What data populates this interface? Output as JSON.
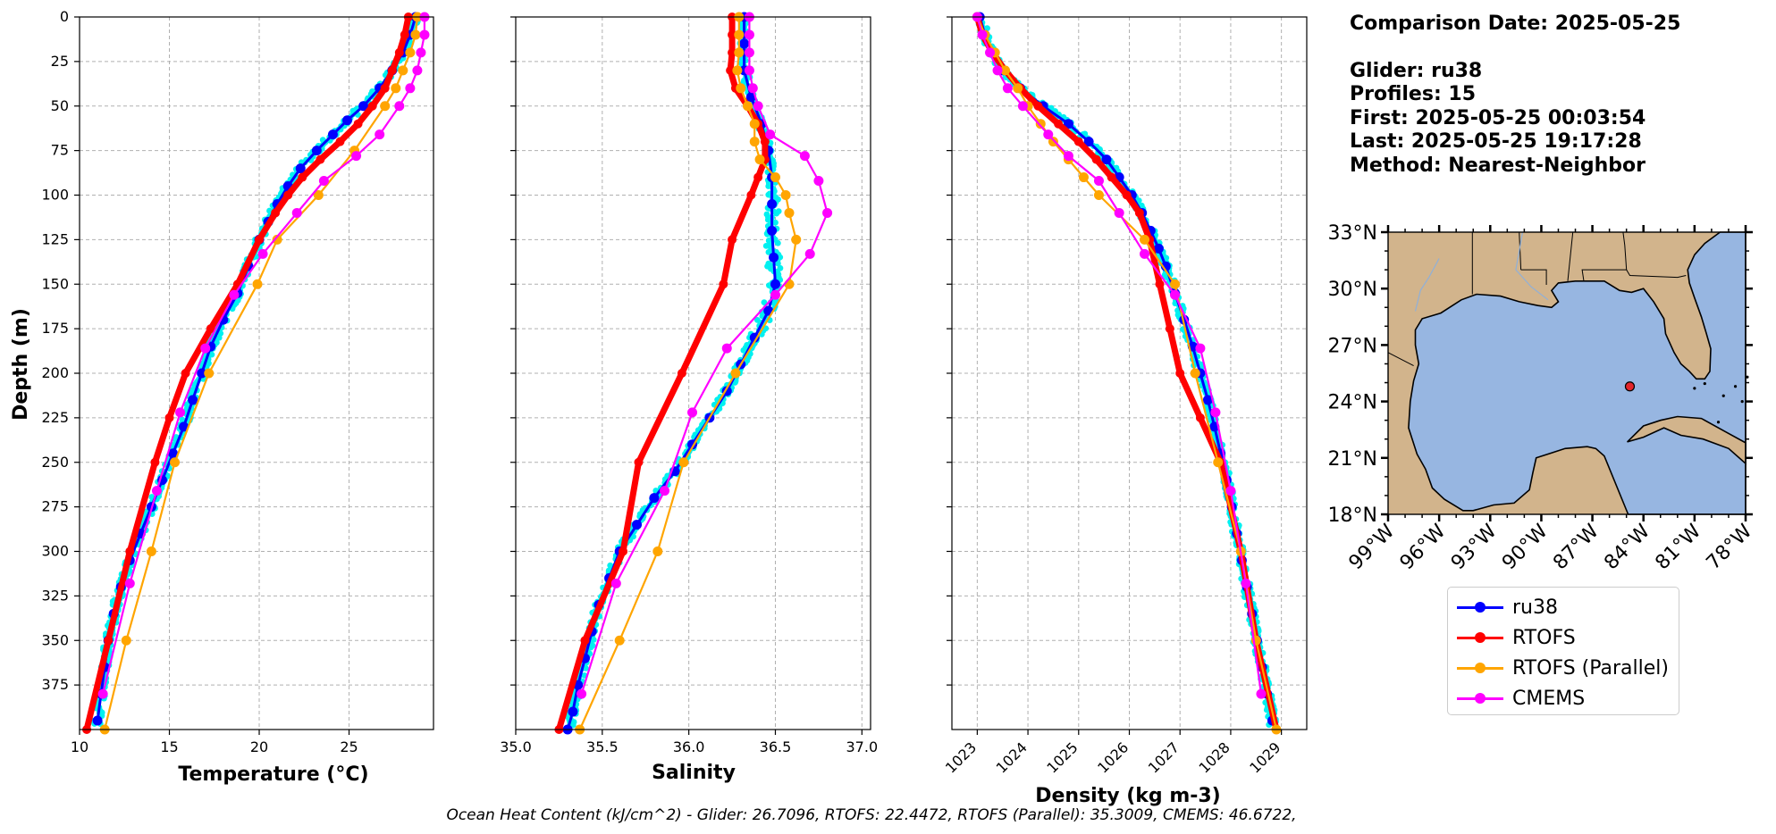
{
  "info": {
    "comparison_date": "Comparison Date: 2025-05-25",
    "glider": "Glider: ru38",
    "profiles": "Profiles: 15",
    "first": "First: 2025-05-25 00:03:54",
    "last": "Last: 2025-05-25 19:17:28",
    "method": "Method: Nearest-Neighbor"
  },
  "footer": "Ocean Heat Content (kJ/cm^2) - Glider: 26.7096,  RTOFS: 22.4472,  RTOFS (Parallel): 35.3009,  CMEMS: 46.6722,",
  "colors": {
    "glider_scatter": "#00f0f0",
    "ru38": "#0000ff",
    "rtofs": "#ff0000",
    "rtofs_parallel": "#ffa500",
    "cmems": "#ff00ff",
    "land": "#d2b48c",
    "ocean": "#97b6e1",
    "marker": "#e3252b"
  },
  "legend": [
    {
      "label": "ru38",
      "color": "#0000ff"
    },
    {
      "label": "RTOFS",
      "color": "#ff0000"
    },
    {
      "label": "RTOFS (Parallel)",
      "color": "#ffa500"
    },
    {
      "label": "CMEMS",
      "color": "#ff00ff"
    }
  ],
  "chart_data": [
    {
      "type": "line",
      "xlabel": "Temperature (°C)",
      "ylabel": "Depth (m)",
      "xlim": [
        10,
        29.7
      ],
      "ylim": [
        400,
        0
      ],
      "xticks": [
        10,
        15,
        20,
        25
      ],
      "yticks": [
        0,
        25,
        50,
        75,
        100,
        125,
        150,
        175,
        200,
        225,
        250,
        275,
        300,
        325,
        350,
        375
      ],
      "grid": true,
      "series": [
        {
          "name": "ru38",
          "color": "#0000ff",
          "depth": [
            0,
            10,
            20,
            30,
            40,
            50,
            58,
            66,
            75,
            85,
            95,
            105,
            115,
            125,
            140,
            155,
            170,
            185,
            200,
            215,
            230,
            245,
            260,
            275,
            290,
            305,
            320,
            335,
            350,
            365,
            380,
            395
          ],
          "values": [
            28.7,
            28.4,
            28.0,
            27.4,
            26.7,
            25.8,
            24.9,
            24.1,
            23.2,
            22.3,
            21.6,
            21.0,
            20.5,
            20.0,
            19.4,
            18.8,
            18.0,
            17.3,
            16.8,
            16.3,
            15.8,
            15.2,
            14.6,
            14.0,
            13.4,
            12.8,
            12.3,
            11.9,
            11.6,
            11.4,
            11.2,
            11.0
          ]
        },
        {
          "name": "RTOFS",
          "color": "#ff0000",
          "depth": [
            0,
            10,
            20,
            30,
            40,
            50,
            60,
            70,
            80,
            90,
            100,
            110,
            125,
            150,
            175,
            200,
            225,
            250,
            300,
            350,
            400
          ],
          "values": [
            28.3,
            28.1,
            27.8,
            27.4,
            27.0,
            26.3,
            25.5,
            24.5,
            23.4,
            22.4,
            21.6,
            20.9,
            20.0,
            18.8,
            17.3,
            15.9,
            15.0,
            14.2,
            12.8,
            11.6,
            10.4
          ]
        },
        {
          "name": "RTOFS (Parallel)",
          "color": "#ffa500",
          "depth": [
            0,
            10,
            20,
            30,
            40,
            50,
            75,
            100,
            125,
            150,
            200,
            250,
            300,
            350,
            400
          ],
          "values": [
            28.8,
            28.7,
            28.4,
            28.0,
            27.6,
            27.0,
            25.3,
            23.3,
            21.0,
            19.9,
            17.2,
            15.3,
            14.0,
            12.6,
            11.4
          ]
        },
        {
          "name": "CMEMS",
          "color": "#ff00ff",
          "depth": [
            0,
            10,
            20,
            30,
            40,
            50,
            66,
            78,
            92,
            110,
            133,
            156,
            186,
            222,
            266,
            318,
            380
          ],
          "values": [
            29.2,
            29.2,
            29.0,
            28.8,
            28.4,
            27.8,
            26.7,
            25.4,
            23.6,
            22.1,
            20.2,
            18.6,
            17.0,
            15.6,
            14.3,
            12.8,
            11.3
          ]
        }
      ]
    },
    {
      "type": "line",
      "xlabel": "Salinity",
      "xlim": [
        35.0,
        37.05
      ],
      "ylim": [
        400,
        0
      ],
      "xticks": [
        35.0,
        35.5,
        36.0,
        36.5,
        37.0
      ],
      "grid": true,
      "series": [
        {
          "name": "ru38",
          "color": "#0000ff",
          "depth": [
            0,
            15,
            30,
            45,
            60,
            75,
            90,
            105,
            120,
            135,
            150,
            165,
            180,
            195,
            210,
            225,
            240,
            255,
            270,
            285,
            300,
            315,
            330,
            345,
            360,
            375,
            390,
            400
          ],
          "values": [
            36.32,
            36.32,
            36.32,
            36.36,
            36.42,
            36.46,
            36.48,
            36.48,
            36.48,
            36.49,
            36.5,
            36.46,
            36.38,
            36.3,
            36.22,
            36.12,
            36.02,
            35.92,
            35.8,
            35.7,
            35.6,
            35.54,
            35.48,
            35.44,
            35.4,
            35.36,
            35.33,
            35.3
          ]
        },
        {
          "name": "RTOFS",
          "color": "#ff0000",
          "depth": [
            0,
            10,
            20,
            30,
            40,
            50,
            60,
            70,
            80,
            90,
            100,
            125,
            150,
            200,
            250,
            300,
            350,
            400
          ],
          "values": [
            36.25,
            36.25,
            36.25,
            36.24,
            36.27,
            36.34,
            36.4,
            36.44,
            36.44,
            36.4,
            36.36,
            36.25,
            36.2,
            35.96,
            35.71,
            35.62,
            35.4,
            35.25
          ]
        },
        {
          "name": "RTOFS (Parallel)",
          "color": "#ffa500",
          "depth": [
            0,
            10,
            20,
            30,
            40,
            50,
            60,
            70,
            80,
            90,
            100,
            110,
            125,
            150,
            200,
            250,
            300,
            350,
            400
          ],
          "values": [
            36.29,
            36.29,
            36.29,
            36.28,
            36.3,
            36.34,
            36.38,
            36.38,
            36.41,
            36.5,
            36.56,
            36.58,
            36.62,
            36.58,
            36.27,
            35.97,
            35.82,
            35.6,
            35.37
          ]
        },
        {
          "name": "CMEMS",
          "color": "#ff00ff",
          "depth": [
            0,
            10,
            20,
            30,
            40,
            50,
            66,
            78,
            92,
            110,
            133,
            156,
            186,
            222,
            266,
            318,
            380
          ],
          "values": [
            36.35,
            36.35,
            36.35,
            36.35,
            36.37,
            36.4,
            36.47,
            36.67,
            36.75,
            36.8,
            36.7,
            36.5,
            36.22,
            36.02,
            35.86,
            35.58,
            35.38
          ]
        }
      ]
    },
    {
      "type": "line",
      "xlabel": "Density (kg m-3)",
      "xlim": [
        1022.5,
        1029.5
      ],
      "ylim": [
        400,
        0
      ],
      "xticks": [
        1023,
        1024,
        1025,
        1026,
        1027,
        1028,
        1029
      ],
      "grid": true,
      "series": [
        {
          "name": "ru38",
          "color": "#0000ff",
          "depth": [
            0,
            10,
            20,
            30,
            40,
            50,
            60,
            70,
            80,
            90,
            100,
            110,
            120,
            130,
            140,
            155,
            170,
            185,
            200,
            215,
            230,
            245,
            260,
            275,
            290,
            305,
            320,
            335,
            350,
            365,
            380,
            395
          ],
          "values": [
            1023.05,
            1023.15,
            1023.3,
            1023.5,
            1023.85,
            1024.3,
            1024.8,
            1025.2,
            1025.55,
            1025.8,
            1026.05,
            1026.25,
            1026.42,
            1026.58,
            1026.72,
            1026.9,
            1027.08,
            1027.25,
            1027.4,
            1027.55,
            1027.68,
            1027.8,
            1027.92,
            1028.02,
            1028.12,
            1028.22,
            1028.32,
            1028.42,
            1028.52,
            1028.62,
            1028.72,
            1028.82
          ]
        },
        {
          "name": "RTOFS",
          "color": "#ff0000",
          "depth": [
            0,
            10,
            20,
            30,
            40,
            50,
            60,
            70,
            80,
            90,
            100,
            110,
            125,
            150,
            175,
            200,
            225,
            250,
            300,
            350,
            400
          ],
          "values": [
            1023.0,
            1023.1,
            1023.3,
            1023.55,
            1023.85,
            1024.2,
            1024.6,
            1025.0,
            1025.35,
            1025.65,
            1025.95,
            1026.2,
            1026.4,
            1026.6,
            1026.8,
            1027.0,
            1027.4,
            1027.8,
            1028.2,
            1028.5,
            1028.9
          ]
        },
        {
          "name": "RTOFS (Parallel)",
          "color": "#ffa500",
          "depth": [
            0,
            10,
            20,
            30,
            40,
            50,
            60,
            70,
            80,
            90,
            100,
            125,
            150,
            200,
            250,
            300,
            350,
            400
          ],
          "values": [
            1023.0,
            1023.15,
            1023.35,
            1023.55,
            1023.8,
            1024.0,
            1024.25,
            1024.5,
            1024.8,
            1025.1,
            1025.4,
            1026.3,
            1026.9,
            1027.3,
            1027.75,
            1028.2,
            1028.5,
            1028.9
          ]
        },
        {
          "name": "CMEMS",
          "color": "#ff00ff",
          "depth": [
            0,
            10,
            20,
            30,
            40,
            50,
            66,
            78,
            92,
            110,
            133,
            156,
            186,
            222,
            266,
            318,
            380
          ],
          "values": [
            1023.0,
            1023.1,
            1023.25,
            1023.4,
            1023.6,
            1023.9,
            1024.4,
            1024.8,
            1025.4,
            1025.8,
            1026.3,
            1026.9,
            1027.4,
            1027.7,
            1028.0,
            1028.3,
            1028.6
          ]
        }
      ]
    }
  ],
  "map": {
    "lon_range": [
      -99,
      -78
    ],
    "lat_range": [
      18,
      33
    ],
    "xticks": [
      "99°W",
      "96°W",
      "93°W",
      "90°W",
      "87°W",
      "84°W",
      "81°W",
      "78°W"
    ],
    "yticks": [
      "33°N",
      "30°N",
      "27°N",
      "24°N",
      "21°N",
      "18°N"
    ],
    "marker": {
      "lon": -84.8,
      "lat": 24.8
    }
  }
}
